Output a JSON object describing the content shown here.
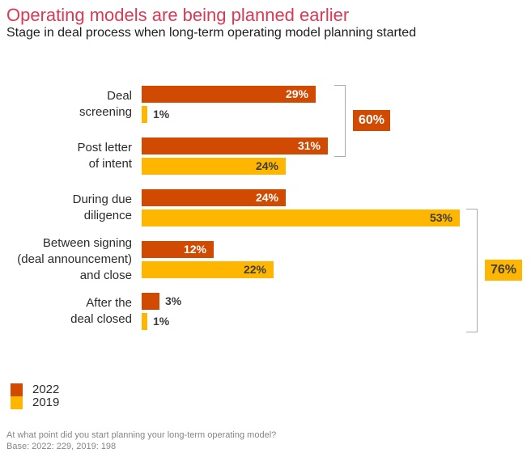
{
  "header": {
    "title": "Operating models are being planned earlier",
    "subtitle": "Stage in deal process when long-term operating model planning started"
  },
  "chart_data": {
    "type": "bar",
    "orientation": "horizontal",
    "title": "Operating models are being planned earlier",
    "subtitle": "Stage in deal process when long-term operating model planning started",
    "categories": [
      "Deal screening",
      "Post letter of intent",
      "During due diligence",
      "Between signing (deal announcement) and close",
      "After the deal closed"
    ],
    "category_lines": [
      [
        "Deal",
        "screening"
      ],
      [
        "Post letter",
        "of intent"
      ],
      [
        "During due",
        "diligence"
      ],
      [
        "Between signing",
        "(deal announcement)",
        "and close"
      ],
      [
        "After the",
        "deal closed"
      ]
    ],
    "series": [
      {
        "name": "2022",
        "color": "#D04A02",
        "values": [
          29,
          31,
          24,
          12,
          3
        ]
      },
      {
        "name": "2019",
        "color": "#FFB600",
        "values": [
          1,
          24,
          53,
          22,
          1
        ]
      }
    ],
    "value_suffix": "%",
    "xlim": [
      0,
      56
    ],
    "grid": false,
    "legend_position": "bottom-left",
    "annotations": [
      {
        "label": "60%",
        "series": "2022",
        "groups": [
          0,
          1
        ],
        "color": "#D04A02",
        "text_color": "#FFFFFF"
      },
      {
        "label": "76%",
        "series": "2019",
        "groups": [
          2,
          3,
          4
        ],
        "color": "#FFB600",
        "text_color": "#3D3D3D"
      }
    ]
  },
  "legend": {
    "items": [
      {
        "label": "2022",
        "color": "#D04A02"
      },
      {
        "label": "2019",
        "color": "#FFB600"
      }
    ]
  },
  "footer": {
    "line1": "At what point did you start planning your long-term operating model?",
    "line2": "Base: 2022: 229, 2019: 198"
  },
  "colors": {
    "title": "#D93954",
    "orange_2022": "#D04A02",
    "yellow_2019": "#FFB600",
    "value_on_orange": "#FFFFFF",
    "value_dark": "#3D3D3D",
    "bracket": "#ABABAB",
    "footnote": "#858585"
  }
}
